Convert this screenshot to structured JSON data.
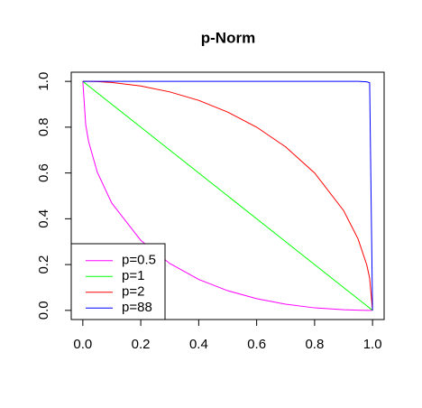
{
  "chart_data": {
    "type": "line",
    "title": "p-Norm",
    "x": [
      0,
      0.01,
      0.02,
      0.05,
      0.1,
      0.2,
      0.3,
      0.4,
      0.5,
      0.6,
      0.7,
      0.8,
      0.9,
      0.95,
      0.98,
      0.99,
      1
    ],
    "series": [
      {
        "name": "p=0.5",
        "color": "#ff00ff",
        "values": [
          1,
          0.81,
          0.737,
          0.603,
          0.468,
          0.306,
          0.205,
          0.135,
          0.086,
          0.051,
          0.027,
          0.011,
          0.003,
          0.001,
          0,
          0,
          0
        ]
      },
      {
        "name": "p=1",
        "color": "#00ff00",
        "values": [
          1,
          0.99,
          0.98,
          0.95,
          0.9,
          0.8,
          0.7,
          0.6,
          0.5,
          0.4,
          0.3,
          0.2,
          0.1,
          0.05,
          0.02,
          0.01,
          0
        ]
      },
      {
        "name": "p=2",
        "color": "#ff0000",
        "values": [
          1,
          1,
          1,
          0.999,
          0.995,
          0.98,
          0.954,
          0.917,
          0.866,
          0.8,
          0.714,
          0.6,
          0.436,
          0.312,
          0.199,
          0.141,
          0
        ]
      },
      {
        "name": "p=88",
        "color": "#0000ff",
        "values": [
          1,
          1,
          1,
          1,
          1,
          1,
          1,
          1,
          1,
          1,
          1,
          1,
          1,
          1,
          0.998,
          0.994,
          0
        ]
      }
    ],
    "xlim": [
      -0.04,
      1.04
    ],
    "ylim": [
      -0.04,
      1.04
    ],
    "xticks": [
      {
        "value": 0,
        "label": "0.0"
      },
      0.2,
      0.4,
      0.6,
      0.8,
      {
        "value": 1,
        "label": "1.0"
      }
    ],
    "yticks": [
      {
        "value": 0,
        "label": "0.0"
      },
      0.2,
      0.4,
      0.6,
      0.8,
      {
        "value": 1,
        "label": "1.0"
      }
    ],
    "legend": "bottom-left"
  }
}
